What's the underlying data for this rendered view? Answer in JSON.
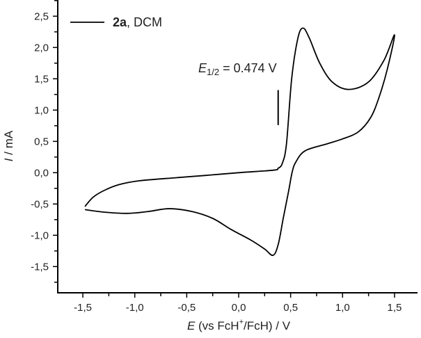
{
  "chart_data": {
    "type": "line",
    "title": "",
    "xlabel": {
      "symbol": "E",
      "rest_before": " (vs  FcH",
      "sup": "+",
      "rest_after": "/FcH) / V"
    },
    "ylabel": {
      "symbol": "I",
      "rest": " / mA"
    },
    "xlim": [
      -1.74,
      1.72
    ],
    "ylim": [
      -1.93,
      2.76
    ],
    "x_ticks": [
      -1.5,
      -1.0,
      -0.5,
      0.0,
      0.5,
      1.0,
      1.5
    ],
    "x_tick_labels": [
      "-1,5",
      "-1,0",
      "-0,5",
      "0,0",
      "0,5",
      "1,0",
      "1,5"
    ],
    "y_ticks": [
      2.5,
      2.0,
      1.5,
      1.0,
      0.5,
      0.0,
      -0.5,
      -1.0,
      -1.5
    ],
    "y_tick_labels": [
      "2,5",
      "2,0",
      "1,5",
      "1,0",
      "0,5",
      "0,0",
      "-0,5",
      "-1,0",
      "-1,5"
    ],
    "grid": false,
    "legend": {
      "position": "top-left",
      "label_bold": "2a",
      "label_rest": ", DCM"
    },
    "annotation": {
      "symbol": "E",
      "sub": "1/2",
      "rest": " = 0.474 V",
      "marker_x": 0.38,
      "marker_y": [
        0.76,
        1.32
      ]
    },
    "series": [
      {
        "name": "2a, DCM",
        "color": "#000000",
        "points": [
          [
            -1.48,
            -0.59
          ],
          [
            -1.3,
            -0.63
          ],
          [
            -1.07,
            -0.65
          ],
          [
            -0.87,
            -0.62
          ],
          [
            -0.67,
            -0.575
          ],
          [
            -0.45,
            -0.62
          ],
          [
            -0.25,
            -0.73
          ],
          [
            -0.07,
            -0.91
          ],
          [
            0.12,
            -1.08
          ],
          [
            0.25,
            -1.22
          ],
          [
            0.33,
            -1.32
          ],
          [
            0.38,
            -1.15
          ],
          [
            0.43,
            -0.72
          ],
          [
            0.48,
            -0.3
          ],
          [
            0.515,
            0.01
          ],
          [
            0.55,
            0.17
          ],
          [
            0.64,
            0.35
          ],
          [
            0.85,
            0.46
          ],
          [
            1.0,
            0.54
          ],
          [
            1.15,
            0.65
          ],
          [
            1.27,
            0.88
          ],
          [
            1.35,
            1.2
          ],
          [
            1.43,
            1.65
          ],
          [
            1.5,
            2.2
          ],
          [
            1.4,
            1.8
          ],
          [
            1.25,
            1.45
          ],
          [
            1.06,
            1.33
          ],
          [
            0.9,
            1.45
          ],
          [
            0.78,
            1.75
          ],
          [
            0.68,
            2.15
          ],
          [
            0.62,
            2.31
          ],
          [
            0.57,
            2.15
          ],
          [
            0.51,
            1.5
          ],
          [
            0.46,
            0.46
          ],
          [
            0.42,
            0.15
          ],
          [
            0.38,
            0.07
          ],
          [
            0.335,
            0.04
          ],
          [
            0.0,
            0.0
          ],
          [
            -0.29,
            -0.04
          ],
          [
            -0.6,
            -0.08
          ],
          [
            -0.96,
            -0.13
          ],
          [
            -1.15,
            -0.19
          ],
          [
            -1.29,
            -0.28
          ],
          [
            -1.4,
            -0.39
          ],
          [
            -1.48,
            -0.54
          ]
        ]
      }
    ]
  }
}
